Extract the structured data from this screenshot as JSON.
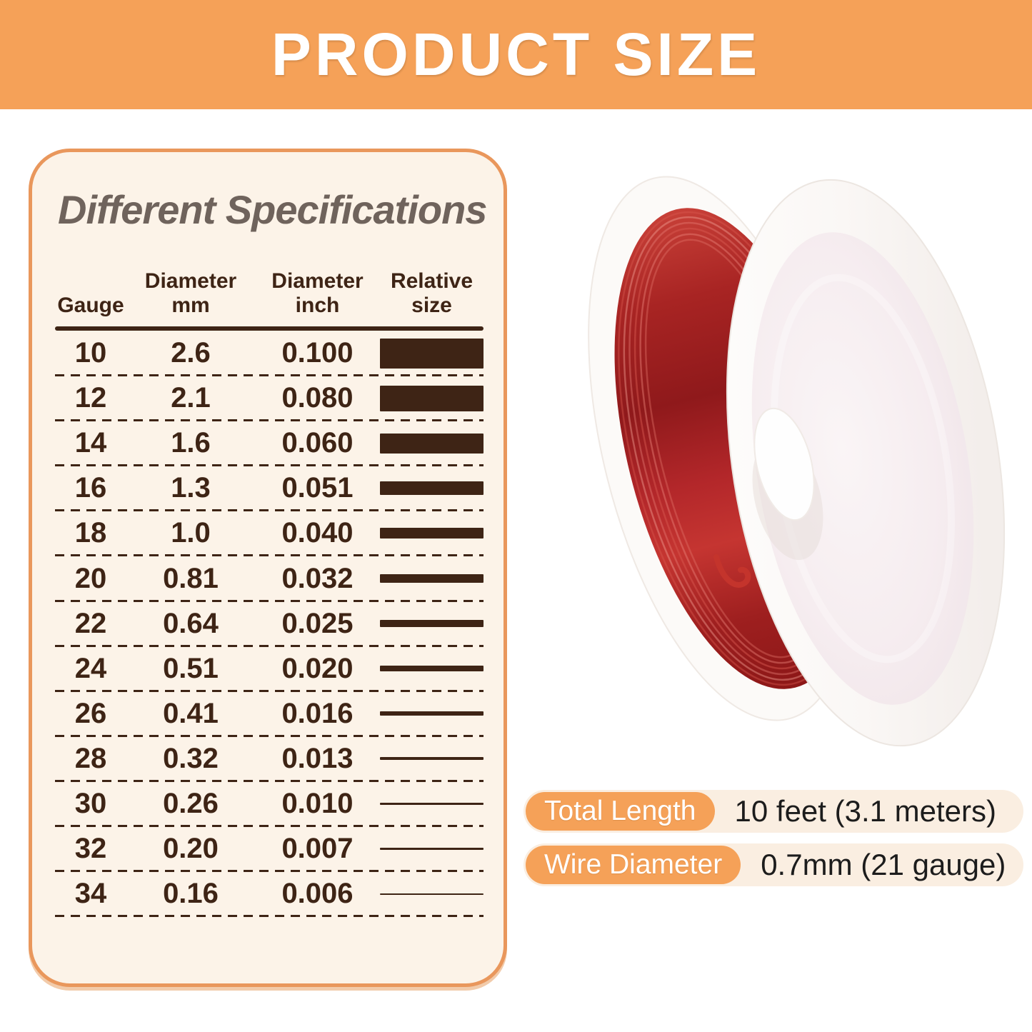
{
  "banner": {
    "title": "PRODUCT SIZE"
  },
  "panel": {
    "title": "Different Specifications",
    "columns": [
      {
        "l1": "Gauge",
        "l2": ""
      },
      {
        "l1": "Diameter",
        "l2": "mm"
      },
      {
        "l1": "Diameter",
        "l2": "inch"
      },
      {
        "l1": "Relative",
        "l2": "size"
      }
    ],
    "rows": [
      {
        "gauge": "10",
        "mm": "2.6",
        "inch": "0.100",
        "bar": 42
      },
      {
        "gauge": "12",
        "mm": "2.1",
        "inch": "0.080",
        "bar": 36
      },
      {
        "gauge": "14",
        "mm": "1.6",
        "inch": "0.060",
        "bar": 28
      },
      {
        "gauge": "16",
        "mm": "1.3",
        "inch": "0.051",
        "bar": 19
      },
      {
        "gauge": "18",
        "mm": "1.0",
        "inch": "0.040",
        "bar": 15
      },
      {
        "gauge": "20",
        "mm": "0.81",
        "inch": "0.032",
        "bar": 12
      },
      {
        "gauge": "22",
        "mm": "0.64",
        "inch": "0.025",
        "bar": 10
      },
      {
        "gauge": "24",
        "mm": "0.51",
        "inch": "0.020",
        "bar": 8
      },
      {
        "gauge": "26",
        "mm": "0.41",
        "inch": "0.016",
        "bar": 6
      },
      {
        "gauge": "28",
        "mm": "0.32",
        "inch": "0.013",
        "bar": 4
      },
      {
        "gauge": "30",
        "mm": "0.26",
        "inch": "0.010",
        "bar": 3.5
      },
      {
        "gauge": "32",
        "mm": "0.20",
        "inch": "0.007",
        "bar": 3
      },
      {
        "gauge": "34",
        "mm": "0.16",
        "inch": "0.006",
        "bar": 2
      }
    ]
  },
  "specs": [
    {
      "label": "Total Length",
      "value": "10 feet (3.1 meters)"
    },
    {
      "label": "Wire Diameter",
      "value": "0.7mm (21 gauge)"
    }
  ],
  "colors": {
    "banner_orange": "#F5A158",
    "panel_bg": "#FCF3E8",
    "panel_border": "#E9975C",
    "table_ink": "#3E2415",
    "title_ink": "#6F635C",
    "pill_orange": "#F5A158",
    "pill_track_bg": "#FAEEE1",
    "value_ink": "#1C1C1C",
    "wire_red": "#B32024"
  }
}
